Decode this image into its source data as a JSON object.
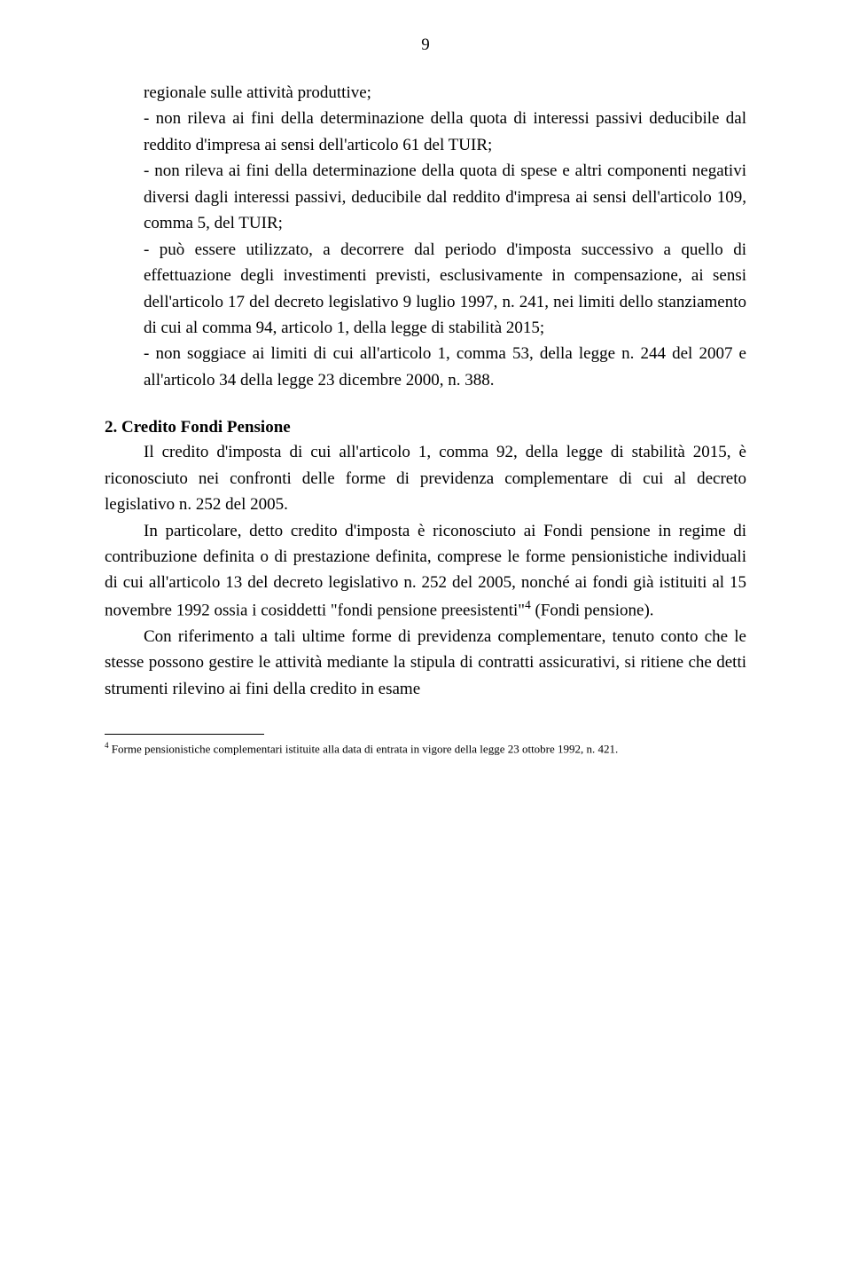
{
  "page_number": "9",
  "list": {
    "item0_continued": "regionale sulle attività produttive;",
    "item1": "- non rileva ai fini della determinazione della quota di interessi passivi deducibile dal reddito d'impresa ai sensi dell'articolo 61 del TUIR;",
    "item2": "- non rileva ai fini della determinazione della quota di spese e altri componenti negativi diversi dagli interessi passivi, deducibile dal reddito d'impresa ai sensi dell'articolo 109, comma 5, del TUIR;",
    "item3": "- può essere utilizzato, a decorrere dal periodo d'imposta successivo a quello di effettuazione degli investimenti previsti, esclusivamente in compensazione, ai sensi dell'articolo 17 del decreto legislativo 9 luglio 1997, n. 241, nei limiti dello stanziamento di cui al comma 94, articolo 1, della legge di stabilità 2015;",
    "item4": "- non soggiace ai limiti di cui all'articolo 1, comma 53, della legge n. 244 del 2007 e all'articolo 34 della legge 23 dicembre 2000, n. 388."
  },
  "section2": {
    "heading": "2. Credito Fondi Pensione",
    "p1": "Il credito d'imposta di cui all'articolo 1, comma 92, della legge di stabilità 2015, è riconosciuto nei confronti delle forme di previdenza complementare di cui al decreto legislativo n. 252 del 2005.",
    "p2_a": "In particolare, detto credito d'imposta è riconosciuto ai Fondi pensione in regime di contribuzione definita o di prestazione definita, comprese le forme pensionistiche individuali di cui all'articolo 13 del decreto legislativo n. 252 del 2005, nonché ai fondi già istituiti al 15 novembre 1992 ossia i cosiddetti \"fondi pensione preesistenti\"",
    "p2_sup": "4",
    "p2_b": " (Fondi pensione).",
    "p3": "Con riferimento a tali ultime forme di previdenza complementare, tenuto conto che le stesse possono gestire le attività mediante la stipula di contratti assicurativi, si ritiene che detti strumenti rilevino ai fini della credito in esame"
  },
  "footnote": {
    "marker": "4",
    "text": " Forme pensionistiche complementari istituite alla data di entrata in vigore della legge 23 ottobre 1992, n. 421."
  }
}
